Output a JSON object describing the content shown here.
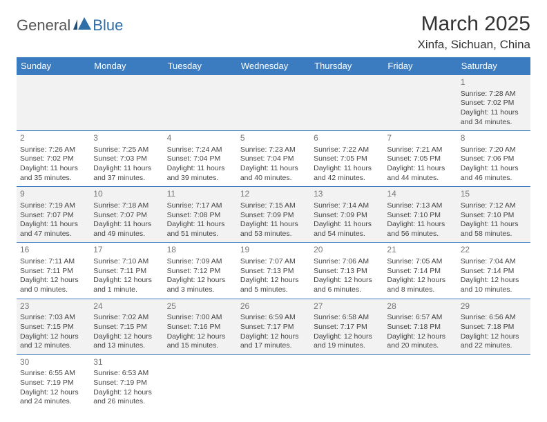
{
  "logo": {
    "part1": "General",
    "part2": "Blue"
  },
  "title": "March 2025",
  "location": "Xinfa, Sichuan, China",
  "colors": {
    "header_bg": "#3b7bbf",
    "header_text": "#ffffff",
    "row_alt_bg": "#f2f2f2",
    "border": "#3b7bbf",
    "logo_accent": "#2f6fa8"
  },
  "dayNames": [
    "Sunday",
    "Monday",
    "Tuesday",
    "Wednesday",
    "Thursday",
    "Friday",
    "Saturday"
  ],
  "weeks": [
    [
      null,
      null,
      null,
      null,
      null,
      null,
      {
        "n": "1",
        "sr": "Sunrise: 7:28 AM",
        "ss": "Sunset: 7:02 PM",
        "dl": "Daylight: 11 hours and 34 minutes."
      }
    ],
    [
      {
        "n": "2",
        "sr": "Sunrise: 7:26 AM",
        "ss": "Sunset: 7:02 PM",
        "dl": "Daylight: 11 hours and 35 minutes."
      },
      {
        "n": "3",
        "sr": "Sunrise: 7:25 AM",
        "ss": "Sunset: 7:03 PM",
        "dl": "Daylight: 11 hours and 37 minutes."
      },
      {
        "n": "4",
        "sr": "Sunrise: 7:24 AM",
        "ss": "Sunset: 7:04 PM",
        "dl": "Daylight: 11 hours and 39 minutes."
      },
      {
        "n": "5",
        "sr": "Sunrise: 7:23 AM",
        "ss": "Sunset: 7:04 PM",
        "dl": "Daylight: 11 hours and 40 minutes."
      },
      {
        "n": "6",
        "sr": "Sunrise: 7:22 AM",
        "ss": "Sunset: 7:05 PM",
        "dl": "Daylight: 11 hours and 42 minutes."
      },
      {
        "n": "7",
        "sr": "Sunrise: 7:21 AM",
        "ss": "Sunset: 7:05 PM",
        "dl": "Daylight: 11 hours and 44 minutes."
      },
      {
        "n": "8",
        "sr": "Sunrise: 7:20 AM",
        "ss": "Sunset: 7:06 PM",
        "dl": "Daylight: 11 hours and 46 minutes."
      }
    ],
    [
      {
        "n": "9",
        "sr": "Sunrise: 7:19 AM",
        "ss": "Sunset: 7:07 PM",
        "dl": "Daylight: 11 hours and 47 minutes."
      },
      {
        "n": "10",
        "sr": "Sunrise: 7:18 AM",
        "ss": "Sunset: 7:07 PM",
        "dl": "Daylight: 11 hours and 49 minutes."
      },
      {
        "n": "11",
        "sr": "Sunrise: 7:17 AM",
        "ss": "Sunset: 7:08 PM",
        "dl": "Daylight: 11 hours and 51 minutes."
      },
      {
        "n": "12",
        "sr": "Sunrise: 7:15 AM",
        "ss": "Sunset: 7:09 PM",
        "dl": "Daylight: 11 hours and 53 minutes."
      },
      {
        "n": "13",
        "sr": "Sunrise: 7:14 AM",
        "ss": "Sunset: 7:09 PM",
        "dl": "Daylight: 11 hours and 54 minutes."
      },
      {
        "n": "14",
        "sr": "Sunrise: 7:13 AM",
        "ss": "Sunset: 7:10 PM",
        "dl": "Daylight: 11 hours and 56 minutes."
      },
      {
        "n": "15",
        "sr": "Sunrise: 7:12 AM",
        "ss": "Sunset: 7:10 PM",
        "dl": "Daylight: 11 hours and 58 minutes."
      }
    ],
    [
      {
        "n": "16",
        "sr": "Sunrise: 7:11 AM",
        "ss": "Sunset: 7:11 PM",
        "dl": "Daylight: 12 hours and 0 minutes."
      },
      {
        "n": "17",
        "sr": "Sunrise: 7:10 AM",
        "ss": "Sunset: 7:11 PM",
        "dl": "Daylight: 12 hours and 1 minute."
      },
      {
        "n": "18",
        "sr": "Sunrise: 7:09 AM",
        "ss": "Sunset: 7:12 PM",
        "dl": "Daylight: 12 hours and 3 minutes."
      },
      {
        "n": "19",
        "sr": "Sunrise: 7:07 AM",
        "ss": "Sunset: 7:13 PM",
        "dl": "Daylight: 12 hours and 5 minutes."
      },
      {
        "n": "20",
        "sr": "Sunrise: 7:06 AM",
        "ss": "Sunset: 7:13 PM",
        "dl": "Daylight: 12 hours and 6 minutes."
      },
      {
        "n": "21",
        "sr": "Sunrise: 7:05 AM",
        "ss": "Sunset: 7:14 PM",
        "dl": "Daylight: 12 hours and 8 minutes."
      },
      {
        "n": "22",
        "sr": "Sunrise: 7:04 AM",
        "ss": "Sunset: 7:14 PM",
        "dl": "Daylight: 12 hours and 10 minutes."
      }
    ],
    [
      {
        "n": "23",
        "sr": "Sunrise: 7:03 AM",
        "ss": "Sunset: 7:15 PM",
        "dl": "Daylight: 12 hours and 12 minutes."
      },
      {
        "n": "24",
        "sr": "Sunrise: 7:02 AM",
        "ss": "Sunset: 7:15 PM",
        "dl": "Daylight: 12 hours and 13 minutes."
      },
      {
        "n": "25",
        "sr": "Sunrise: 7:00 AM",
        "ss": "Sunset: 7:16 PM",
        "dl": "Daylight: 12 hours and 15 minutes."
      },
      {
        "n": "26",
        "sr": "Sunrise: 6:59 AM",
        "ss": "Sunset: 7:17 PM",
        "dl": "Daylight: 12 hours and 17 minutes."
      },
      {
        "n": "27",
        "sr": "Sunrise: 6:58 AM",
        "ss": "Sunset: 7:17 PM",
        "dl": "Daylight: 12 hours and 19 minutes."
      },
      {
        "n": "28",
        "sr": "Sunrise: 6:57 AM",
        "ss": "Sunset: 7:18 PM",
        "dl": "Daylight: 12 hours and 20 minutes."
      },
      {
        "n": "29",
        "sr": "Sunrise: 6:56 AM",
        "ss": "Sunset: 7:18 PM",
        "dl": "Daylight: 12 hours and 22 minutes."
      }
    ],
    [
      {
        "n": "30",
        "sr": "Sunrise: 6:55 AM",
        "ss": "Sunset: 7:19 PM",
        "dl": "Daylight: 12 hours and 24 minutes."
      },
      {
        "n": "31",
        "sr": "Sunrise: 6:53 AM",
        "ss": "Sunset: 7:19 PM",
        "dl": "Daylight: 12 hours and 26 minutes."
      },
      null,
      null,
      null,
      null,
      null
    ]
  ]
}
